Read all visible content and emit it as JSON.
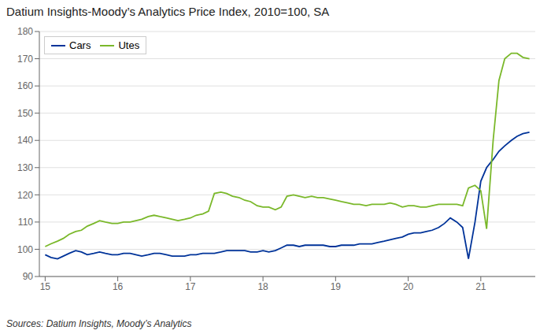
{
  "chart_data": {
    "type": "line",
    "title": "Datium Insights-Moody’s Analytics Price Index, 2010=100, SA",
    "annotations": [
      "Sources: Datium Insights, Moody’s Analytics"
    ],
    "x": [
      15.0,
      15.08,
      15.17,
      15.25,
      15.33,
      15.42,
      15.5,
      15.58,
      15.67,
      15.75,
      15.83,
      15.92,
      16.0,
      16.08,
      16.17,
      16.25,
      16.33,
      16.42,
      16.5,
      16.58,
      16.67,
      16.75,
      16.83,
      16.92,
      17.0,
      17.08,
      17.17,
      17.25,
      17.33,
      17.42,
      17.5,
      17.58,
      17.67,
      17.75,
      17.83,
      17.92,
      18.0,
      18.08,
      18.17,
      18.25,
      18.33,
      18.42,
      18.5,
      18.58,
      18.67,
      18.75,
      18.83,
      18.92,
      19.0,
      19.08,
      19.17,
      19.25,
      19.33,
      19.42,
      19.5,
      19.58,
      19.67,
      19.75,
      19.83,
      19.92,
      20.0,
      20.08,
      20.17,
      20.25,
      20.33,
      20.42,
      20.5,
      20.58,
      20.67,
      20.75,
      20.83,
      20.92,
      21.0,
      21.08,
      21.17,
      21.25,
      21.33,
      21.42,
      21.5,
      21.58,
      21.67
    ],
    "series": [
      {
        "name": "Cars",
        "color": "#003399",
        "values": [
          98.0,
          97.0,
          96.5,
          97.5,
          98.5,
          99.5,
          99.0,
          98.0,
          98.5,
          99.0,
          98.5,
          98.0,
          98.0,
          98.5,
          98.5,
          98.0,
          97.5,
          98.0,
          98.5,
          98.5,
          98.0,
          97.5,
          97.5,
          97.5,
          98.0,
          98.0,
          98.5,
          98.5,
          98.5,
          99.0,
          99.5,
          99.5,
          99.5,
          99.5,
          99.0,
          99.0,
          99.5,
          99.0,
          99.5,
          100.5,
          101.5,
          101.5,
          101.0,
          101.5,
          101.5,
          101.5,
          101.5,
          101.0,
          101.0,
          101.5,
          101.5,
          101.5,
          102.0,
          102.0,
          102.0,
          102.5,
          103.0,
          103.5,
          104.0,
          104.5,
          105.5,
          106.0,
          106.0,
          106.5,
          107.0,
          108.0,
          109.5,
          111.5,
          110.0,
          108.0,
          96.5,
          110.0,
          125.0,
          130.0,
          133.0,
          136.0,
          138.0,
          140.0,
          141.5,
          142.5,
          143.0
        ]
      },
      {
        "name": "Utes",
        "color": "#7ab82a",
        "values": [
          101.0,
          102.0,
          103.0,
          104.0,
          105.5,
          106.5,
          107.0,
          108.5,
          109.5,
          110.5,
          110.0,
          109.5,
          109.5,
          110.0,
          110.0,
          110.5,
          111.0,
          112.0,
          112.5,
          112.0,
          111.5,
          111.0,
          110.5,
          111.0,
          111.5,
          112.5,
          113.0,
          114.0,
          120.5,
          121.0,
          120.5,
          119.5,
          119.0,
          118.0,
          117.5,
          116.0,
          115.5,
          115.5,
          114.5,
          115.5,
          119.5,
          120.0,
          119.5,
          119.0,
          119.5,
          119.0,
          119.0,
          118.5,
          118.0,
          117.5,
          117.0,
          116.5,
          116.5,
          116.0,
          116.5,
          116.5,
          116.5,
          117.0,
          116.5,
          115.5,
          116.0,
          116.0,
          115.5,
          115.5,
          116.0,
          116.5,
          116.5,
          116.5,
          116.5,
          116.0,
          122.5,
          123.5,
          121.5,
          107.5,
          140.0,
          162.0,
          170.0,
          172.0,
          172.0,
          170.5,
          170.0
        ]
      }
    ],
    "xlim": [
      14.92,
      21.75
    ],
    "xticks": [
      15,
      16,
      17,
      18,
      19,
      20,
      21
    ],
    "ylim": [
      90,
      180
    ],
    "yticks": [
      90,
      100,
      110,
      120,
      130,
      140,
      150,
      160,
      170,
      180
    ],
    "grid": true,
    "legend": "upper left"
  }
}
